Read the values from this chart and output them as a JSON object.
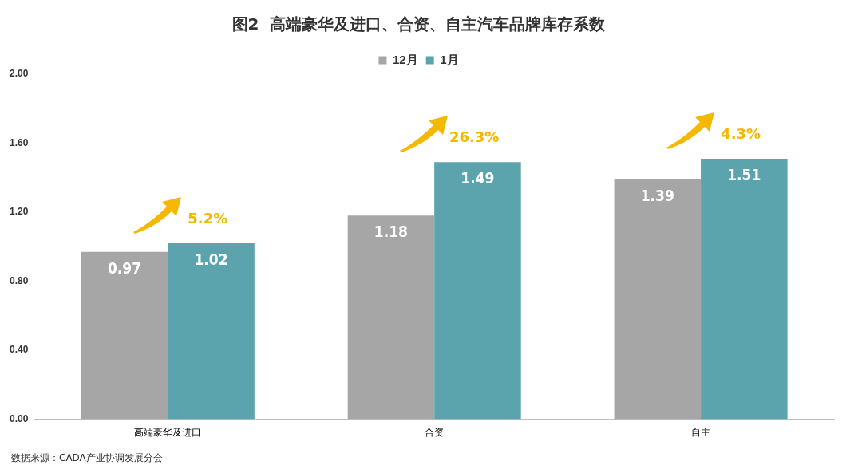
{
  "chart_data": {
    "type": "bar",
    "title": "图2  高端豪华及进口、合资、自主汽车品牌库存系数",
    "categories": [
      "高端豪华及进口",
      "合资",
      "自主"
    ],
    "series": [
      {
        "name": "12月",
        "color": "#a6a6a6",
        "values": [
          0.97,
          1.18,
          1.39
        ]
      },
      {
        "name": "1月",
        "color": "#5ba3ad",
        "values": [
          1.02,
          1.49,
          1.51
        ]
      }
    ],
    "ylim": [
      0,
      2
    ],
    "yticks": [
      {
        "value": 0,
        "label": "0.00"
      },
      {
        "value": 0.4,
        "label": "0.40"
      },
      {
        "value": 0.8,
        "label": "0.80"
      },
      {
        "value": 1.2,
        "label": "1.20"
      },
      {
        "value": 1.6,
        "label": "1.60"
      },
      {
        "value": 2,
        "label": "2.00"
      }
    ],
    "grid": false,
    "legend": "top",
    "data_labels": true,
    "annotations": [
      "5.2%",
      "26.3%",
      "4.3%",
      "数据来源：CADA产业协调发展分会"
    ]
  }
}
